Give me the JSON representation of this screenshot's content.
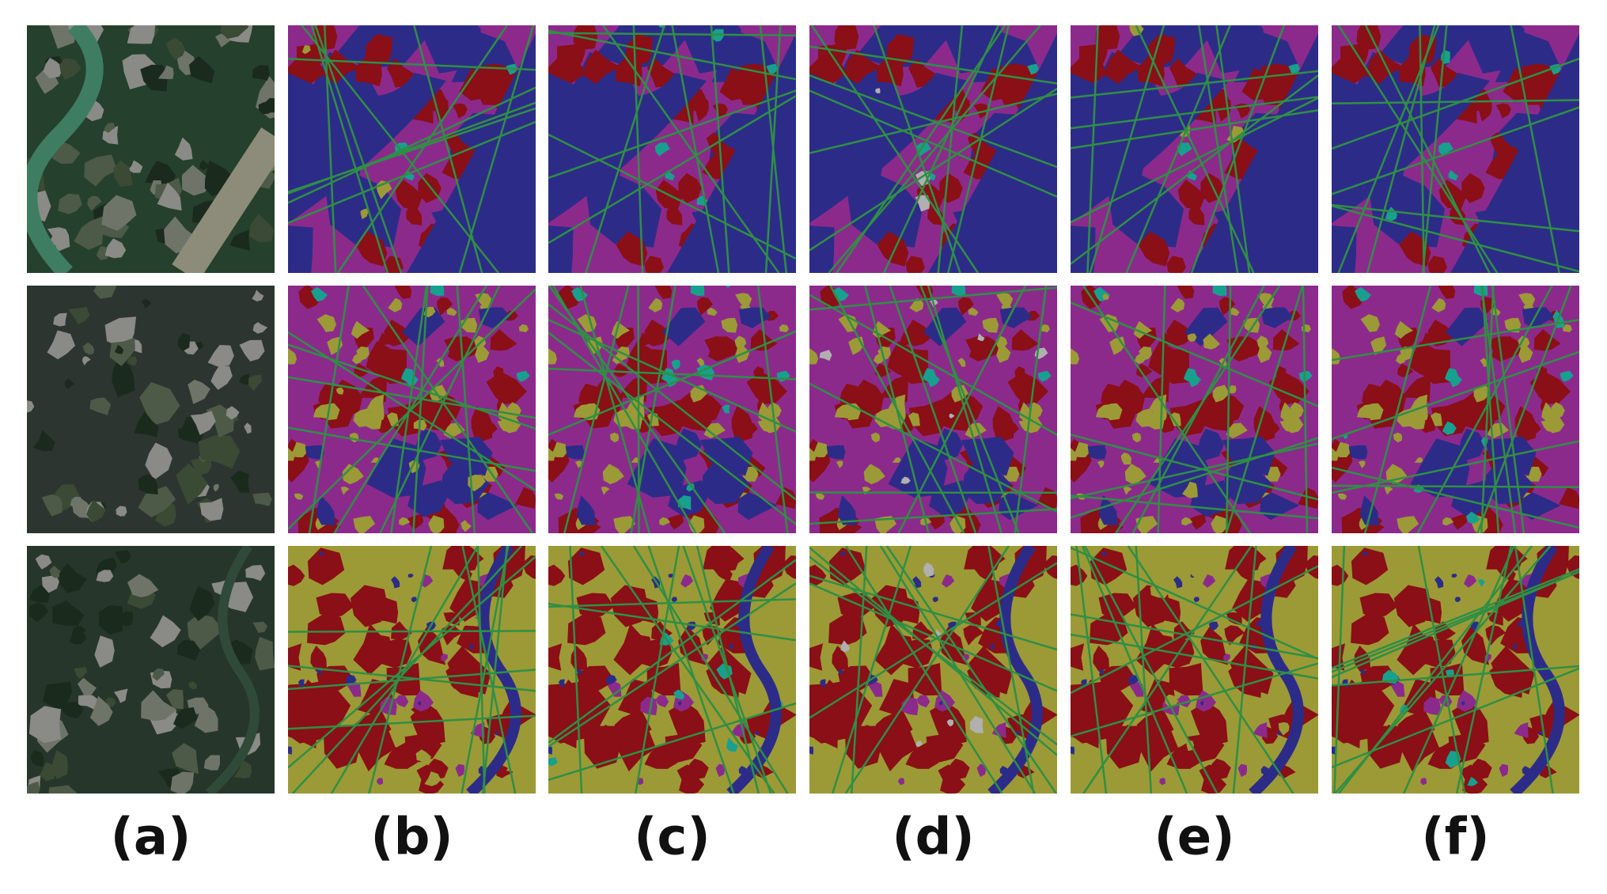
{
  "labels": [
    "(a)",
    "(b)",
    "(c)",
    "(d)",
    "(e)",
    "(f)"
  ]
}
